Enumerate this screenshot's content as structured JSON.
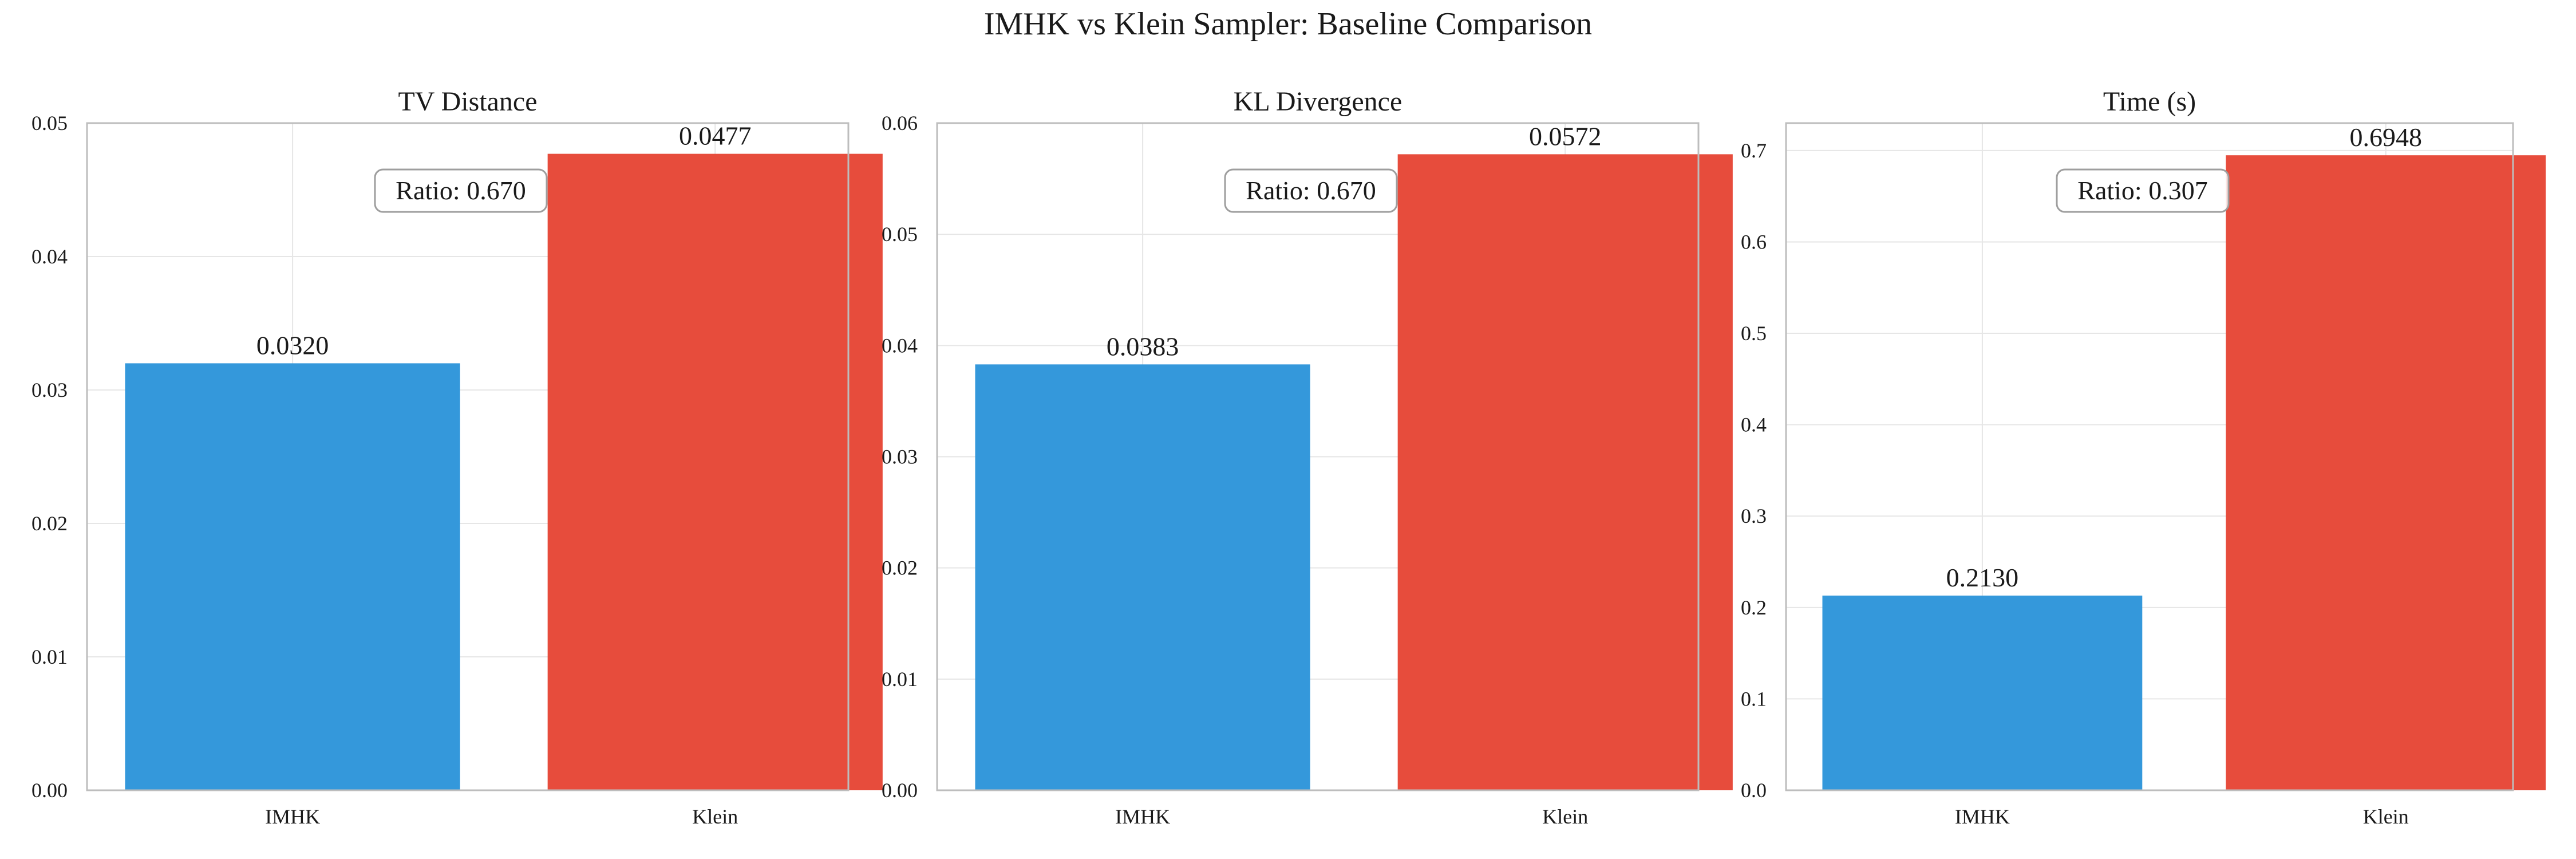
{
  "figure": {
    "title": "IMHK vs Klein Sampler: Baseline Comparison"
  },
  "colors": {
    "IMHK": "#3498db",
    "Klein": "#e74c3c",
    "grid": "#e6e6e6",
    "axis": "#bdbdbd",
    "text": "#1a1a1a"
  },
  "chart_data": [
    {
      "type": "bar",
      "title": "TV Distance",
      "categories": [
        "IMHK",
        "Klein"
      ],
      "values": [
        0.032,
        0.0477
      ],
      "value_labels": [
        "0.0320",
        "0.0477"
      ],
      "ylim": [
        0,
        0.05
      ],
      "yticks": [
        0.0,
        0.01,
        0.02,
        0.03,
        0.04,
        0.05
      ],
      "ytick_labels": [
        "0.00",
        "0.01",
        "0.02",
        "0.03",
        "0.04",
        "0.05"
      ],
      "annotation": "Ratio: 0.670",
      "grid": true
    },
    {
      "type": "bar",
      "title": "KL Divergence",
      "categories": [
        "IMHK",
        "Klein"
      ],
      "values": [
        0.0383,
        0.0572
      ],
      "value_labels": [
        "0.0383",
        "0.0572"
      ],
      "ylim": [
        0,
        0.06
      ],
      "yticks": [
        0.0,
        0.01,
        0.02,
        0.03,
        0.04,
        0.05,
        0.06
      ],
      "ytick_labels": [
        "0.00",
        "0.01",
        "0.02",
        "0.03",
        "0.04",
        "0.05",
        "0.06"
      ],
      "annotation": "Ratio: 0.670",
      "grid": true
    },
    {
      "type": "bar",
      "title": "Time (s)",
      "categories": [
        "IMHK",
        "Klein"
      ],
      "values": [
        0.213,
        0.6948
      ],
      "value_labels": [
        "0.2130",
        "0.6948"
      ],
      "ylim": [
        0,
        0.73
      ],
      "yticks": [
        0.0,
        0.1,
        0.2,
        0.3,
        0.4,
        0.5,
        0.6,
        0.7
      ],
      "ytick_labels": [
        "0.0",
        "0.1",
        "0.2",
        "0.3",
        "0.4",
        "0.5",
        "0.6",
        "0.7"
      ],
      "annotation": "Ratio: 0.307",
      "grid": true
    }
  ]
}
